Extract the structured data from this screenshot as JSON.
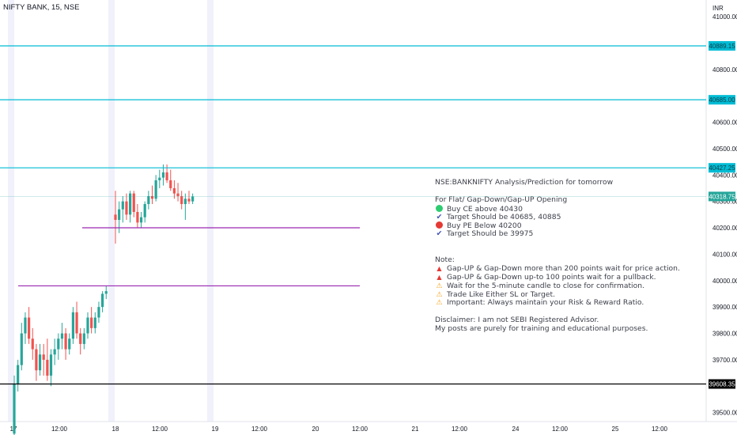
{
  "header": {
    "title": "NIFTY BANK, 15, NSE"
  },
  "currency": "INR",
  "colors": {
    "up": "#26a69a",
    "down": "#ef5350",
    "level": "#00bcd4",
    "support": "#9c27b0",
    "lowline": "#000000",
    "buy_dot": "#2ecc71",
    "sell_dot": "#e53935"
  },
  "chart_data": {
    "type": "candlestick",
    "title": "NIFTY BANK, 15, NSE",
    "y_ticks": [
      "41000.00",
      "40800.00",
      "40600.00",
      "40500.00",
      "40400.00",
      "40300.00",
      "40200.00",
      "40100.00",
      "40000.00",
      "39900.00",
      "39800.00",
      "39700.00",
      "39500.00"
    ],
    "ylim": [
      39475,
      41045
    ],
    "x_ticks": [
      "17",
      "12:00",
      "18",
      "12:00",
      "19",
      "12:00",
      "20",
      "12:00",
      "21",
      "12:00",
      "24",
      "12:00",
      "25",
      "12:00"
    ],
    "price_labels": [
      {
        "value": 40889.15,
        "text": "40889.15",
        "style": "level"
      },
      {
        "value": 40685.0,
        "text": "40685.00",
        "style": "level"
      },
      {
        "value": 40427.25,
        "text": "40427.25",
        "style": "level"
      },
      {
        "value": 40318.75,
        "text": "40318.75",
        "style": "last"
      },
      {
        "value": 39608.35,
        "text": "39608.35",
        "style": "low"
      }
    ],
    "horizontal_levels": [
      {
        "value": 40889.15,
        "style": "level",
        "start": "left"
      },
      {
        "value": 40685.0,
        "style": "level",
        "start": "left"
      },
      {
        "value": 40427.25,
        "style": "level",
        "start": "left"
      },
      {
        "value": 40200,
        "style": "support",
        "start": "18 02:00",
        "end": "20 12:00"
      },
      {
        "value": 39980,
        "style": "support",
        "start": "17 02:00",
        "end": "20 12:00"
      },
      {
        "value": 39608.35,
        "style": "low",
        "start": "left"
      }
    ],
    "sessions": [
      {
        "day": "17",
        "candles": [
          [
            39420,
            39640,
            39400,
            39610
          ],
          [
            39610,
            39700,
            39580,
            39680
          ],
          [
            39680,
            39840,
            39660,
            39800
          ],
          [
            39800,
            39880,
            39760,
            39860
          ],
          [
            39860,
            39900,
            39760,
            39780
          ],
          [
            39780,
            39820,
            39700,
            39740
          ],
          [
            39740,
            39760,
            39620,
            39660
          ],
          [
            39660,
            39760,
            39640,
            39720
          ],
          [
            39720,
            39760,
            39640,
            39700
          ],
          [
            39700,
            39780,
            39620,
            39640
          ],
          [
            39640,
            39740,
            39600,
            39720
          ],
          [
            39720,
            39780,
            39680,
            39740
          ],
          [
            39740,
            39800,
            39700,
            39780
          ],
          [
            39780,
            39840,
            39740,
            39800
          ],
          [
            39800,
            39820,
            39700,
            39740
          ],
          [
            39740,
            39800,
            39720,
            39780
          ],
          [
            39780,
            39900,
            39760,
            39880
          ],
          [
            39880,
            39920,
            39780,
            39800
          ],
          [
            39800,
            39820,
            39720,
            39760
          ],
          [
            39760,
            39820,
            39740,
            39800
          ],
          [
            39800,
            39880,
            39780,
            39860
          ],
          [
            39860,
            39900,
            39800,
            39820
          ],
          [
            39820,
            39880,
            39800,
            39860
          ],
          [
            39860,
            39920,
            39840,
            39900
          ],
          [
            39900,
            39960,
            39880,
            39950
          ],
          [
            39950,
            39980,
            39930,
            39960
          ]
        ]
      },
      {
        "day": "18",
        "candles": [
          [
            40250,
            40340,
            40140,
            40230
          ],
          [
            40230,
            40300,
            40180,
            40270
          ],
          [
            40270,
            40320,
            40220,
            40300
          ],
          [
            40300,
            40330,
            40230,
            40250
          ],
          [
            40250,
            40340,
            40220,
            40330
          ],
          [
            40330,
            40340,
            40240,
            40260
          ],
          [
            40260,
            40290,
            40200,
            40220
          ],
          [
            40220,
            40260,
            40200,
            40240
          ],
          [
            40240,
            40300,
            40220,
            40290
          ],
          [
            40290,
            40340,
            40270,
            40320
          ],
          [
            40320,
            40360,
            40290,
            40310
          ],
          [
            40310,
            40400,
            40300,
            40380
          ],
          [
            40380,
            40420,
            40350,
            40390
          ],
          [
            40390,
            40440,
            40360,
            40410
          ],
          [
            40410,
            40440,
            40370,
            40380
          ],
          [
            40380,
            40420,
            40340,
            40350
          ],
          [
            40350,
            40380,
            40310,
            40330
          ],
          [
            40330,
            40370,
            40300,
            40320
          ],
          [
            40320,
            40340,
            40270,
            40290
          ],
          [
            40290,
            40330,
            40230,
            40310
          ],
          [
            40310,
            40340,
            40290,
            40300
          ],
          [
            40300,
            40330,
            40290,
            40318.75
          ]
        ]
      }
    ]
  },
  "note": {
    "line1": "NSE:BANKNIFTY Analysis/Prediction for tomorrow",
    "line2": "For Flat/ Gap-Down/Gap-UP Opening",
    "buy": "Buy CE above 40430",
    "buy_target": "Target Should be 40685, 40885",
    "sell": "Buy PE Below 40200",
    "sell_target": "Target Should be 39975",
    "note_title": "Note:",
    "n1": "Gap-UP & Gap-Down more than 200 points wait for price action.",
    "n2": "Gap-UP & Gap-Down up-to 100 points wait for a pullback.",
    "n3": "Wait for the 5-minute candle to close for confirmation.",
    "n4": "Trade Like Either SL or Target.",
    "n5": "Important: Always maintain your Risk & Reward Ratio.",
    "disc1": "Disclaimer: I am not SEBI Registered Advisor.",
    "disc2": "My posts are purely for training and educational purposes."
  }
}
